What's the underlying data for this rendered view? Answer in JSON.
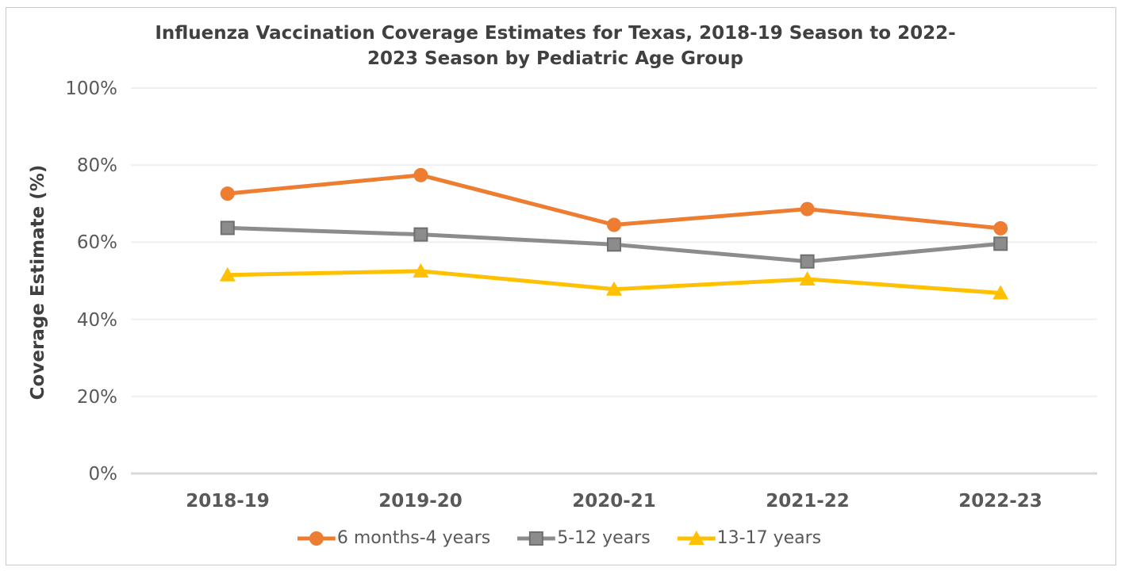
{
  "page": {
    "background": "#FFFFFF",
    "border_color": "#C9C9C9"
  },
  "chart_data": {
    "type": "line",
    "title": "Influenza Vaccination Coverage Estimates for Texas, 2018-19 Season to 2022-2023 Season by Pediatric Age Group",
    "title_lines": [
      "Influenza Vaccination Coverage Estimates for Texas, 2018-19 Season to 2022-",
      "2023 Season by Pediatric Age Group"
    ],
    "xlabel": "",
    "ylabel": "Coverage Estimate (%)",
    "ylim": [
      0,
      100
    ],
    "ytick_step": 20,
    "ytick_labels": [
      "0%",
      "20%",
      "40%",
      "60%",
      "80%",
      "100%"
    ],
    "categories": [
      "2018-19",
      "2019-20",
      "2020-21",
      "2021-22",
      "2022-23"
    ],
    "grid": "horizontal-only",
    "legend_position": "bottom-center",
    "series": [
      {
        "name": "6 months-4 years",
        "marker": "circle",
        "color": "#ED7D31",
        "values": [
          72.6,
          77.4,
          64.5,
          68.6,
          63.6
        ]
      },
      {
        "name": "5-12 years",
        "marker": "square",
        "color": "#8C8C8C",
        "marker_border": "#6F6F6F",
        "values": [
          63.7,
          62.0,
          59.4,
          55.0,
          59.6
        ]
      },
      {
        "name": "13-17 years",
        "marker": "triangle",
        "color": "#FFC000",
        "values": [
          51.5,
          52.5,
          47.8,
          50.4,
          46.8
        ]
      }
    ],
    "colors": {
      "grid": "#EFEFEF",
      "axis_line": "#D8D8D8",
      "title_text": "#404040",
      "tick_text": "#595959",
      "legend_text": "#595959"
    }
  }
}
